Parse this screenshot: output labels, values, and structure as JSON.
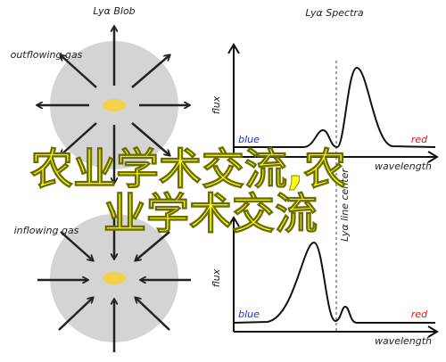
{
  "left_panel": {
    "title": "Lyα Blob",
    "top_label": "outflowing gas",
    "bottom_label": "inflowing gas"
  },
  "right_panel": {
    "title": "Lyα Spectra",
    "y_label_top": "flux",
    "y_label_bottom": "flux",
    "x_label_top": "wavelength",
    "x_label_bottom": "wavelength",
    "blue_top": "blue",
    "red_top": "red",
    "blue_bottom": "blue",
    "red_bottom": "red",
    "line_center": "Lyα line center"
  },
  "overlay": {
    "lines": [
      "农业学术交流,农",
      "业学术交流"
    ]
  }
}
